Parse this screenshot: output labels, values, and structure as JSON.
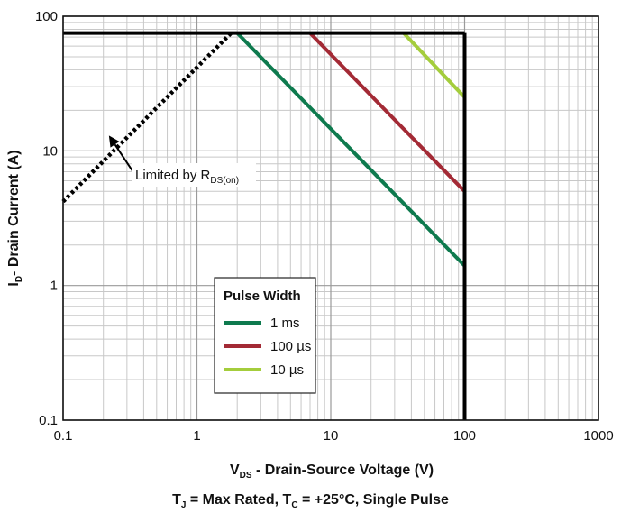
{
  "chart_data": {
    "type": "line",
    "x_scale": "log",
    "y_scale": "log",
    "xlim": [
      0.1,
      1000
    ],
    "ylim": [
      0.1,
      100
    ],
    "grid": true,
    "x_ticks": [
      "0.1",
      "1",
      "10",
      "100",
      "1000"
    ],
    "y_ticks": [
      "0.1",
      "1",
      "10",
      "100"
    ],
    "ylabel": {
      "main": "I",
      "sub": "D",
      "rest": "- Drain Current (A)"
    },
    "xlabel": {
      "main": "V",
      "sub": "DS",
      "rest": "  - Drain-Source Voltage (V)"
    },
    "caption": {
      "p1": "T",
      "s1": "J",
      "p2": " = Max Rated, T",
      "s2": "C",
      "p3": " = +25°C, Single Pulse"
    },
    "legend": {
      "title": "Pulse Width",
      "placement": "center-left"
    },
    "series": [
      {
        "name": "1 ms",
        "color": "#0e7a4e",
        "points": [
          [
            2,
            75
          ],
          [
            100,
            1.4
          ]
        ]
      },
      {
        "name": "100 µs",
        "color": "#a32a35",
        "points": [
          [
            7,
            75
          ],
          [
            100,
            5.0
          ]
        ]
      },
      {
        "name": "10 µs",
        "color": "#a4cd3c",
        "points": [
          [
            35,
            75
          ],
          [
            100,
            25
          ]
        ]
      }
    ],
    "limits": {
      "current_limit": {
        "points": [
          [
            0.1,
            75
          ],
          [
            100,
            75
          ]
        ],
        "color": "#000000"
      },
      "voltage_limit": {
        "points": [
          [
            100,
            75
          ],
          [
            100,
            0.1
          ]
        ],
        "color": "#000000"
      },
      "rds_on_limit": {
        "points": [
          [
            0.1,
            4.2
          ],
          [
            1.8,
            75
          ]
        ],
        "color": "#000000",
        "style": "dotted"
      }
    },
    "annotation": {
      "main": "Limited by R",
      "sub": "DS(on)",
      "arrow_from": [
        0.35,
        6.5
      ],
      "arrow_to": [
        0.22,
        13
      ]
    }
  }
}
